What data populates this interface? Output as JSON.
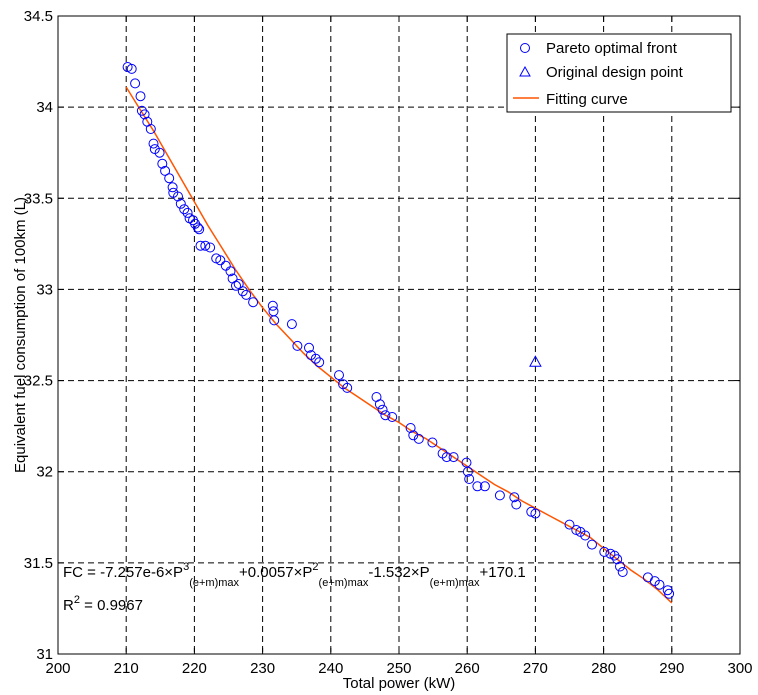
{
  "chart_data": {
    "type": "scatter",
    "xlabel": "Total power (kW)",
    "ylabel": "Equivalent fuel consumption of 100km (L)",
    "xlim": [
      200,
      300
    ],
    "ylim": [
      31,
      34.5
    ],
    "xticks": [
      "200",
      "210",
      "220",
      "230",
      "240",
      "250",
      "260",
      "270",
      "280",
      "290",
      "300"
    ],
    "yticks": [
      "31",
      "31.5",
      "32",
      "32.5",
      "33",
      "33.5",
      "34",
      "34.5"
    ],
    "grid": true,
    "legend_position": "top-right",
    "colors": {
      "pareto": "#0000ff",
      "design": "#0000ff",
      "fit": "#ff5500"
    },
    "series": [
      {
        "name": "Pareto optimal front",
        "marker": "circle",
        "points": [
          [
            210.2,
            34.22
          ],
          [
            210.8,
            34.21
          ],
          [
            211.3,
            34.13
          ],
          [
            212.1,
            34.06
          ],
          [
            212.3,
            33.98
          ],
          [
            212.7,
            33.96
          ],
          [
            213.1,
            33.92
          ],
          [
            213.6,
            33.88
          ],
          [
            214.0,
            33.8
          ],
          [
            214.2,
            33.77
          ],
          [
            214.9,
            33.75
          ],
          [
            215.3,
            33.69
          ],
          [
            215.7,
            33.65
          ],
          [
            216.3,
            33.61
          ],
          [
            216.8,
            33.56
          ],
          [
            216.9,
            33.53
          ],
          [
            217.6,
            33.51
          ],
          [
            218.0,
            33.47
          ],
          [
            218.5,
            33.44
          ],
          [
            219.0,
            33.42
          ],
          [
            219.3,
            33.39
          ],
          [
            219.8,
            33.38
          ],
          [
            220.1,
            33.36
          ],
          [
            220.5,
            33.34
          ],
          [
            220.7,
            33.33
          ],
          [
            220.9,
            33.24
          ],
          [
            221.6,
            33.24
          ],
          [
            222.3,
            33.23
          ],
          [
            223.2,
            33.17
          ],
          [
            223.8,
            33.16
          ],
          [
            224.6,
            33.13
          ],
          [
            225.3,
            33.1
          ],
          [
            225.6,
            33.06
          ],
          [
            226.1,
            33.02
          ],
          [
            226.5,
            33.03
          ],
          [
            227.1,
            32.99
          ],
          [
            227.6,
            32.97
          ],
          [
            228.6,
            32.93
          ],
          [
            231.6,
            32.88
          ],
          [
            231.5,
            32.91
          ],
          [
            231.7,
            32.83
          ],
          [
            234.3,
            32.81
          ],
          [
            235.1,
            32.69
          ],
          [
            236.8,
            32.68
          ],
          [
            237.1,
            32.64
          ],
          [
            237.8,
            32.62
          ],
          [
            238.3,
            32.6
          ],
          [
            241.2,
            32.53
          ],
          [
            241.8,
            32.48
          ],
          [
            242.4,
            32.46
          ],
          [
            246.7,
            32.41
          ],
          [
            247.2,
            32.37
          ],
          [
            247.6,
            32.34
          ],
          [
            248.0,
            32.31
          ],
          [
            249.0,
            32.3
          ],
          [
            251.7,
            32.24
          ],
          [
            252.1,
            32.2
          ],
          [
            252.9,
            32.18
          ],
          [
            254.9,
            32.16
          ],
          [
            256.4,
            32.1
          ],
          [
            257.0,
            32.08
          ],
          [
            258.0,
            32.08
          ],
          [
            259.9,
            32.05
          ],
          [
            260.1,
            32.0
          ],
          [
            260.3,
            31.96
          ],
          [
            261.5,
            31.92
          ],
          [
            262.6,
            31.92
          ],
          [
            264.8,
            31.87
          ],
          [
            266.9,
            31.86
          ],
          [
            267.2,
            31.82
          ],
          [
            269.4,
            31.78
          ],
          [
            270.0,
            31.77
          ],
          [
            275.0,
            31.71
          ],
          [
            276.0,
            31.68
          ],
          [
            276.6,
            31.67
          ],
          [
            277.3,
            31.65
          ],
          [
            278.3,
            31.6
          ],
          [
            280.1,
            31.56
          ],
          [
            281.0,
            31.55
          ],
          [
            281.6,
            31.54
          ],
          [
            282.0,
            31.52
          ],
          [
            282.4,
            31.48
          ],
          [
            282.8,
            31.45
          ],
          [
            286.5,
            31.42
          ],
          [
            287.5,
            31.4
          ],
          [
            288.2,
            31.38
          ],
          [
            289.4,
            31.35
          ],
          [
            289.6,
            31.33
          ]
        ]
      },
      {
        "name": "Original design point",
        "marker": "triangle",
        "points": [
          [
            270.0,
            32.6
          ]
        ]
      },
      {
        "name": "Fitting curve",
        "marker": "line",
        "points": [
          [
            210,
            34.11
          ],
          [
            212,
            33.99
          ],
          [
            214,
            33.87
          ],
          [
            216,
            33.74
          ],
          [
            218,
            33.61
          ],
          [
            220,
            33.48
          ],
          [
            222,
            33.35
          ],
          [
            224,
            33.23
          ],
          [
            226,
            33.11
          ],
          [
            228,
            33.0
          ],
          [
            230,
            32.9
          ],
          [
            232,
            32.81
          ],
          [
            234,
            32.73
          ],
          [
            236,
            32.65
          ],
          [
            238,
            32.58
          ],
          [
            240,
            32.52
          ],
          [
            242,
            32.46
          ],
          [
            244,
            32.41
          ],
          [
            246,
            32.36
          ],
          [
            248,
            32.31
          ],
          [
            250,
            32.27
          ],
          [
            252,
            32.22
          ],
          [
            254,
            32.18
          ],
          [
            256,
            32.13
          ],
          [
            258,
            32.08
          ],
          [
            260,
            32.03
          ],
          [
            262,
            31.98
          ],
          [
            264,
            31.93
          ],
          [
            266,
            31.89
          ],
          [
            268,
            31.84
          ],
          [
            270,
            31.8
          ],
          [
            272,
            31.76
          ],
          [
            274,
            31.72
          ],
          [
            276,
            31.68
          ],
          [
            278,
            31.64
          ],
          [
            280,
            31.58
          ],
          [
            282,
            31.52
          ],
          [
            284,
            31.46
          ],
          [
            286,
            31.41
          ],
          [
            288,
            31.35
          ],
          [
            290,
            31.28
          ]
        ]
      }
    ],
    "annotations": {
      "equation": {
        "parts": [
          {
            "text": "FC = -7.257e-6×P",
            "style": "normal"
          },
          {
            "text": "3",
            "style": "sup"
          },
          {
            "text": "(e+m)max",
            "style": "sub"
          },
          {
            "text": "+0.0057×P",
            "style": "normal"
          },
          {
            "text": "2",
            "style": "sup"
          },
          {
            "text": "(e+m)max",
            "style": "sub"
          },
          {
            "text": "-1.532×P",
            "style": "normal"
          },
          {
            "text": "(e+m)max",
            "style": "sub"
          },
          {
            "text": "+170.1",
            "style": "normal"
          }
        ]
      },
      "r2": {
        "parts": [
          {
            "text": "R",
            "style": "normal"
          },
          {
            "text": "2",
            "style": "sup"
          },
          {
            "text": " = 0.9967",
            "style": "normal"
          }
        ]
      }
    }
  }
}
